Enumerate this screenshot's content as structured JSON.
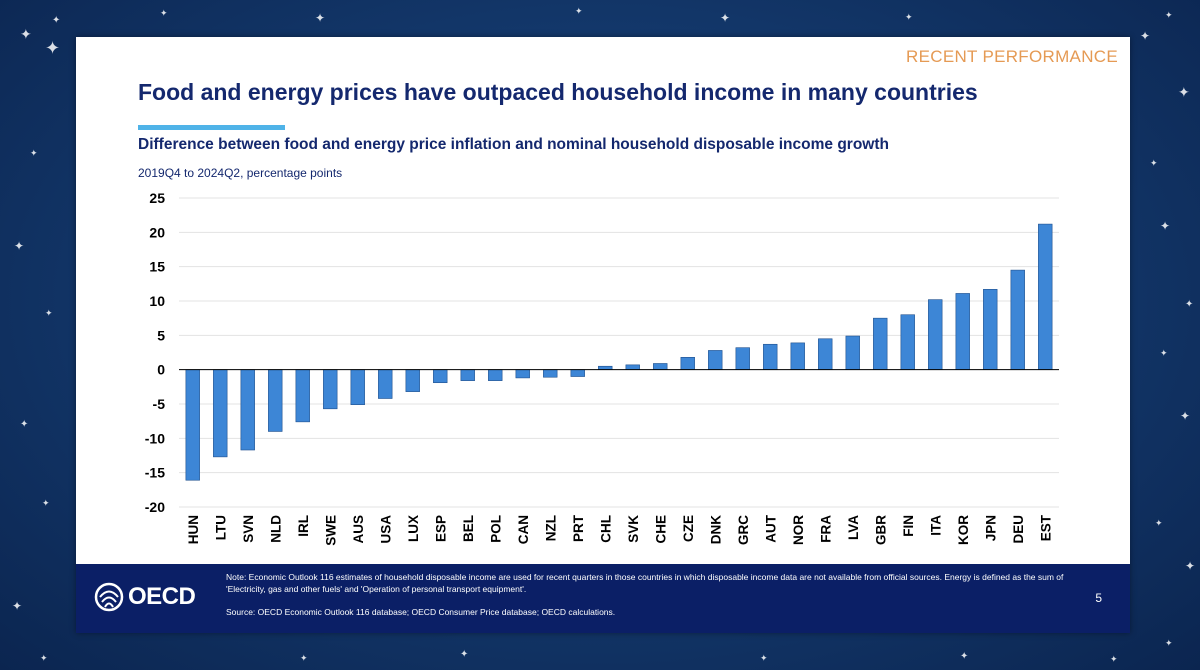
{
  "slide": {
    "section_label": "RECENT PERFORMANCE",
    "title": "Food and energy prices have outpaced household income in many countries",
    "subtitle": "Difference between food and energy price inflation and nominal household disposable income growth",
    "units_label": "2019Q4 to 2024Q2, percentage points",
    "page_number": "5"
  },
  "footer": {
    "logo_text": "OECD",
    "note": "Note: Economic Outlook 116 estimates of household disposable income are used for recent quarters in those countries in which disposable income data are not available from official sources. Energy is defined as the sum of 'Electricity, gas and other fuels' and 'Operation of personal transport equipment'.",
    "source": "Source: OECD Economic Outlook 116 database; OECD Consumer Price database; OECD calculations."
  },
  "colors": {
    "bar": "#3d86d6",
    "bar_edge": "#1f4f8c",
    "title": "#14286e",
    "accent_rule": "#4fb3e8",
    "section_label": "#e59a54",
    "footer_bg": "#0b1f66"
  },
  "chart_data": {
    "type": "bar",
    "categories": [
      "HUN",
      "LTU",
      "SVN",
      "NLD",
      "IRL",
      "SWE",
      "AUS",
      "USA",
      "LUX",
      "ESP",
      "BEL",
      "POL",
      "CAN",
      "NZL",
      "PRT",
      "CHL",
      "SVK",
      "CHE",
      "CZE",
      "DNK",
      "GRC",
      "AUT",
      "NOR",
      "FRA",
      "LVA",
      "GBR",
      "FIN",
      "ITA",
      "KOR",
      "JPN",
      "DEU",
      "EST"
    ],
    "values": [
      -16.1,
      -12.7,
      -11.7,
      -9.0,
      -7.6,
      -5.7,
      -5.1,
      -4.2,
      -3.2,
      -1.9,
      -1.6,
      -1.6,
      -1.2,
      -1.1,
      -1.0,
      0.5,
      0.7,
      0.9,
      1.8,
      2.8,
      3.2,
      3.7,
      3.9,
      4.5,
      4.9,
      7.5,
      8.0,
      10.2,
      11.1,
      11.7,
      14.5,
      21.2
    ],
    "ylim": [
      -20,
      25
    ],
    "yticks": [
      25,
      20,
      15,
      10,
      5,
      0,
      -5,
      -10,
      -15,
      -20
    ],
    "grid": true,
    "xlabel": "",
    "ylabel": ""
  }
}
